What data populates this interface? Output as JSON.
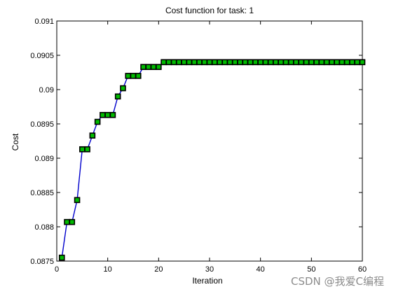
{
  "chart_data": {
    "type": "line",
    "title": "Cost function for task: 1",
    "xlabel": "Iteration",
    "ylabel": "Cost",
    "xlim": [
      0,
      60
    ],
    "ylim": [
      0.0875,
      0.091
    ],
    "x_ticks": [
      0,
      10,
      20,
      30,
      40,
      50,
      60
    ],
    "x_tick_labels": [
      "0",
      "10",
      "20",
      "30",
      "40",
      "50",
      "60"
    ],
    "y_ticks": [
      0.0875,
      0.088,
      0.0885,
      0.089,
      0.0895,
      0.09,
      0.0905,
      0.091
    ],
    "y_tick_labels": [
      "0.0875",
      "0.088",
      "0.0885",
      "0.089",
      "0.0895",
      "0.09",
      "0.0905",
      "0.091"
    ],
    "grid": false,
    "series": [
      {
        "line_color": "#0000cc",
        "marker": "square",
        "marker_fill": "#00bb00",
        "marker_edge": "#000000",
        "x": [
          1,
          2,
          3,
          4,
          5,
          6,
          7,
          8,
          9,
          10,
          11,
          12,
          13,
          14,
          15,
          16,
          17,
          18,
          19,
          20,
          21,
          22,
          23,
          24,
          25,
          26,
          27,
          28,
          29,
          30,
          31,
          32,
          33,
          34,
          35,
          36,
          37,
          38,
          39,
          40,
          41,
          42,
          43,
          44,
          45,
          46,
          47,
          48,
          49,
          50,
          51,
          52,
          53,
          54,
          55,
          56,
          57,
          58,
          59,
          60
        ],
        "y": [
          0.08755,
          0.08807,
          0.08807,
          0.08839,
          0.08913,
          0.08913,
          0.08933,
          0.08953,
          0.08963,
          0.08963,
          0.08963,
          0.0899,
          0.09002,
          0.0902,
          0.0902,
          0.0902,
          0.09033,
          0.09033,
          0.09033,
          0.09033,
          0.0904,
          0.0904,
          0.0904,
          0.0904,
          0.0904,
          0.0904,
          0.0904,
          0.0904,
          0.0904,
          0.0904,
          0.0904,
          0.0904,
          0.0904,
          0.0904,
          0.0904,
          0.0904,
          0.0904,
          0.0904,
          0.0904,
          0.0904,
          0.0904,
          0.0904,
          0.0904,
          0.0904,
          0.0904,
          0.0904,
          0.0904,
          0.0904,
          0.0904,
          0.0904,
          0.0904,
          0.0904,
          0.0904,
          0.0904,
          0.0904,
          0.0904,
          0.0904,
          0.0904,
          0.0904,
          0.0904
        ]
      }
    ]
  },
  "watermark": "CSDN @我爱C编程"
}
